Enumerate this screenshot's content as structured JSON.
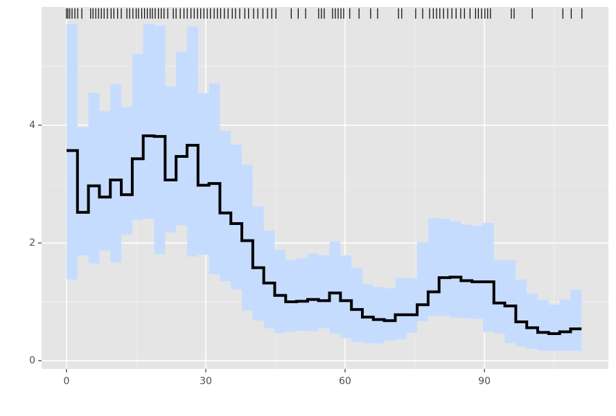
{
  "chart_data": {
    "type": "step",
    "x": [
      0,
      2.36,
      4.72,
      7.08,
      9.44,
      11.8,
      14.16,
      16.52,
      18.88,
      21.24,
      23.6,
      25.96,
      28.32,
      30.68,
      33.04,
      35.4,
      37.76,
      40.12,
      42.48,
      44.84,
      47.2,
      49.56,
      51.92,
      54.28,
      56.64,
      59,
      61.36,
      63.72,
      66.08,
      68.44,
      70.8,
      73.16,
      75.52,
      77.88,
      80.24,
      82.6,
      84.96,
      87.32,
      89.68,
      92.04,
      94.4,
      96.76,
      99.12,
      101.48,
      103.84,
      106.2,
      108.56,
      110.92
    ],
    "values": [
      3.57,
      2.52,
      2.97,
      2.78,
      3.07,
      2.82,
      3.43,
      3.82,
      3.81,
      3.07,
      3.47,
      3.66,
      2.98,
      3.01,
      2.51,
      2.33,
      2.04,
      1.58,
      1.32,
      1.11,
      1.0,
      1.01,
      1.04,
      1.02,
      1.15,
      1.02,
      0.87,
      0.74,
      0.7,
      0.68,
      0.78,
      0.78,
      0.95,
      1.17,
      1.41,
      1.42,
      1.36,
      1.34,
      1.34,
      0.98,
      0.93,
      0.66,
      0.56,
      0.48,
      0.46,
      0.49,
      0.54,
      0.54
    ],
    "color": "#000000",
    "ribbon": {
      "color": "#c6dcff",
      "upper": [
        5.72,
        3.97,
        4.55,
        4.24,
        4.7,
        4.31,
        5.21,
        5.72,
        5.69,
        4.66,
        5.25,
        5.68,
        4.54,
        4.71,
        3.9,
        3.67,
        3.33,
        2.62,
        2.21,
        1.89,
        1.71,
        1.74,
        1.82,
        1.79,
        2.02,
        1.79,
        1.58,
        1.3,
        1.25,
        1.23,
        1.41,
        1.4,
        2.01,
        2.42,
        2.41,
        2.37,
        2.31,
        2.29,
        2.34,
        1.71,
        1.71,
        1.38,
        1.14,
        1.03,
        0.95,
        1.04,
        1.2,
        1.2
      ],
      "lower": [
        2.03,
        1.38,
        1.79,
        1.65,
        1.87,
        1.67,
        2.14,
        2.39,
        2.41,
        1.81,
        2.18,
        2.3,
        1.77,
        1.8,
        1.47,
        1.35,
        1.21,
        0.85,
        0.68,
        0.55,
        0.47,
        0.49,
        0.51,
        0.5,
        0.55,
        0.46,
        0.38,
        0.32,
        0.3,
        0.29,
        0.34,
        0.36,
        0.47,
        0.67,
        0.76,
        0.76,
        0.73,
        0.72,
        0.71,
        0.49,
        0.46,
        0.3,
        0.24,
        0.2,
        0.17,
        0.17,
        0.17,
        0.17
      ]
    },
    "rug": [
      0,
      0.3,
      0.7,
      1.2,
      1.8,
      2.4,
      3.3,
      5.2,
      5.7,
      6.3,
      6.9,
      7.5,
      8.1,
      8.8,
      9.6,
      10.2,
      11.0,
      11.8,
      13.0,
      13.6,
      14.3,
      15.0,
      15.5,
      16.2,
      16.8,
      17.4,
      18.0,
      18.5,
      19.1,
      19.8,
      20.4,
      21.0,
      21.8,
      23.0,
      23.6,
      24.5,
      25.3,
      26.0,
      26.8,
      27.5,
      28.2,
      28.9,
      29.6,
      30.3,
      31.0,
      31.8,
      32.5,
      33.2,
      34.0,
      34.8,
      35.7,
      36.4,
      37.3,
      38.4,
      39.2,
      40.3,
      41.2,
      42.3,
      43.3,
      44.2,
      45.1,
      48.4,
      49.9,
      51.5,
      54.3,
      54.9,
      55.5,
      57.3,
      57.9,
      58.5,
      59.1,
      59.7,
      61.0,
      63.0,
      65.5,
      67.0,
      71.5,
      72.2,
      75.2,
      76.7,
      78.2,
      79.0,
      79.7,
      80.4,
      81.2,
      82.1,
      83.0,
      83.9,
      84.9,
      85.7,
      86.9,
      88.1,
      88.7,
      89.4,
      90.1,
      90.7,
      91.3,
      95.8,
      96.4,
      100.3,
      106.9,
      108.7,
      111.0
    ],
    "xlim": [
      -5.37,
      116.7
    ],
    "ylim": [
      -0.14,
      6.01
    ],
    "xticks": [
      0,
      30,
      60,
      90
    ],
    "yticks": [
      0,
      2,
      4
    ],
    "xminor": [
      15,
      45,
      75,
      105
    ],
    "yminor": [
      1,
      3,
      5
    ],
    "grid": true
  }
}
